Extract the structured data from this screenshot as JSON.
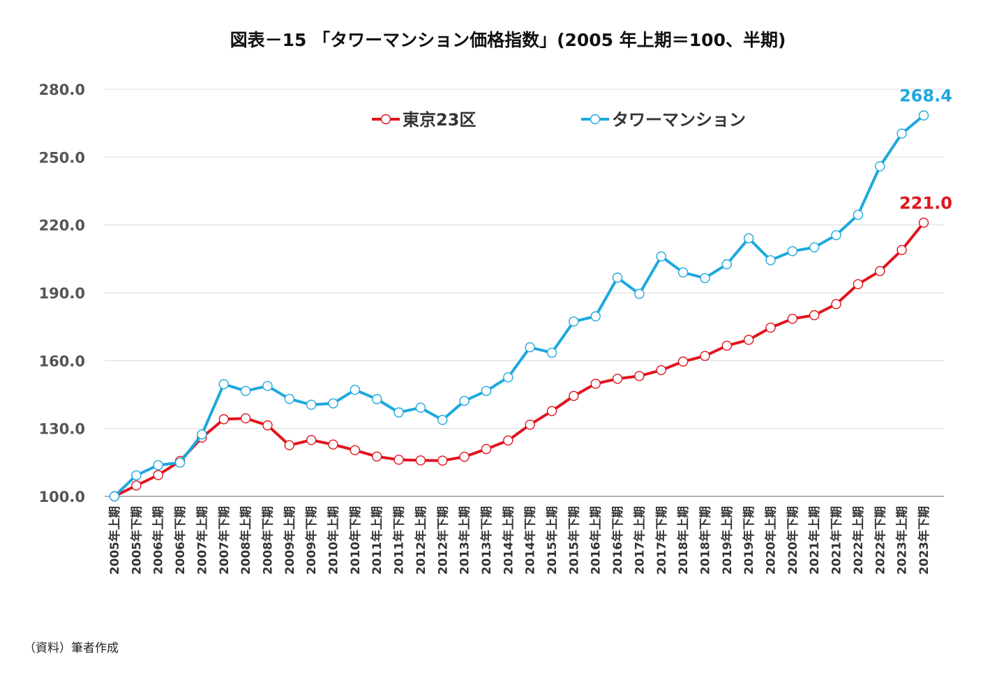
{
  "source_note": "（資料）筆者作成",
  "chart_data": {
    "type": "line",
    "title": "図表－15 「タワーマンション価格指数」(2005 年上期＝100、半期)",
    "xlabel": "",
    "ylabel": "",
    "ylim": [
      100,
      280
    ],
    "yticks": [
      "100.0",
      "130.0",
      "160.0",
      "190.0",
      "220.0",
      "250.0",
      "280.0"
    ],
    "grid": true,
    "legend_position": "top-center",
    "categories": [
      "2005年上期",
      "2005年下期",
      "2006年上期",
      "2006年下期",
      "2007年上期",
      "2007年下期",
      "2008年上期",
      "2008年下期",
      "2009年上期",
      "2009年下期",
      "2010年上期",
      "2010年下期",
      "2011年上期",
      "2011年下期",
      "2012年上期",
      "2012年下期",
      "2013年上期",
      "2013年下期",
      "2014年上期",
      "2014年下期",
      "2015年上期",
      "2015年下期",
      "2016年上期",
      "2016年下期",
      "2017年上期",
      "2017年下期",
      "2018年上期",
      "2018年下期",
      "2019年上期",
      "2019年下期",
      "2020年上期",
      "2020年下期",
      "2021年上期",
      "2021年下期",
      "2022年上期",
      "2022年下期",
      "2023年上期",
      "2023年下期"
    ],
    "series": [
      {
        "name": "東京23区",
        "color": "#e0141e",
        "end_label": "221.0",
        "values": [
          100.0,
          104.8,
          109.4,
          115.6,
          126.0,
          134.1,
          134.5,
          131.4,
          122.6,
          124.9,
          122.9,
          120.4,
          117.6,
          116.2,
          115.9,
          115.8,
          117.5,
          120.9,
          124.7,
          131.7,
          137.7,
          144.4,
          149.8,
          152.0,
          153.2,
          155.8,
          159.6,
          162.1,
          166.6,
          169.2,
          174.6,
          178.5,
          180.1,
          185.0,
          193.8,
          199.6,
          208.9,
          221.0
        ]
      },
      {
        "name": "タワーマンション",
        "color": "#1ea8de",
        "end_label": "268.4",
        "values": [
          100.0,
          109.3,
          113.8,
          114.9,
          127.4,
          149.6,
          146.6,
          148.8,
          143.1,
          140.5,
          141.1,
          147.1,
          143.0,
          137.1,
          139.2,
          133.8,
          142.2,
          146.6,
          152.6,
          165.9,
          163.5,
          177.3,
          179.6,
          196.7,
          189.5,
          206.1,
          199.0,
          196.5,
          202.6,
          214.1,
          204.4,
          208.4,
          210.1,
          215.5,
          224.5,
          245.9,
          260.4,
          268.4
        ]
      }
    ]
  }
}
